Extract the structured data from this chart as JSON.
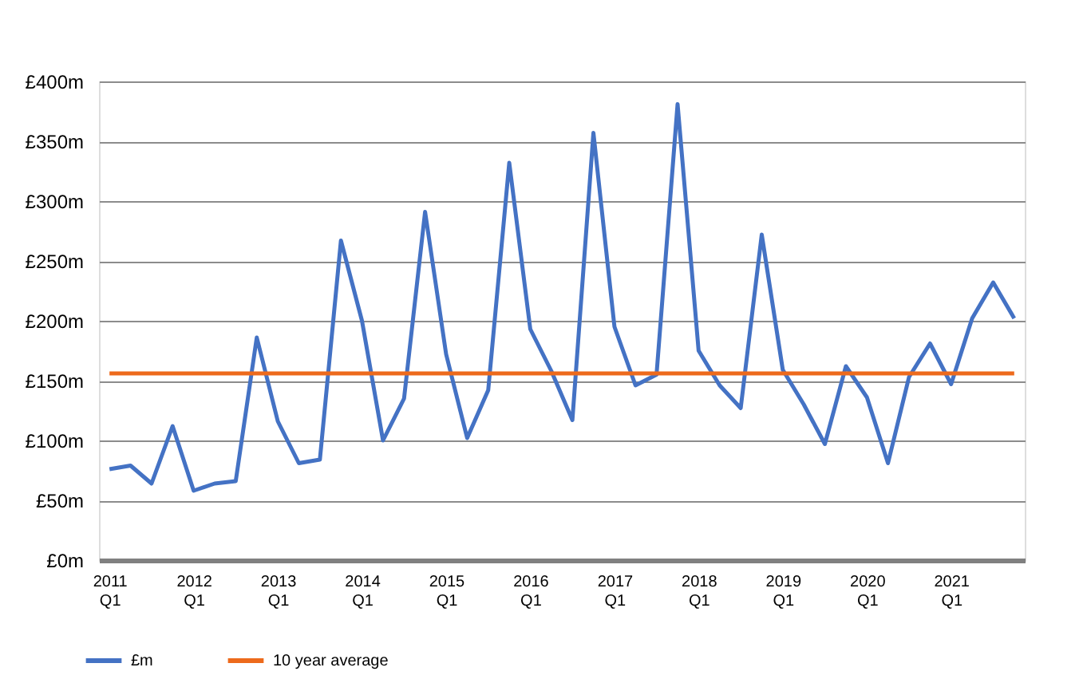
{
  "chart_data": {
    "type": "line",
    "categories": [
      "2011 Q1",
      null,
      null,
      null,
      "2012 Q1",
      null,
      null,
      null,
      "2013 Q1",
      null,
      null,
      null,
      "2014 Q1",
      null,
      null,
      null,
      "2015 Q1",
      null,
      null,
      null,
      "2016 Q1",
      null,
      null,
      null,
      "2017 Q1",
      null,
      null,
      null,
      "2018 Q1",
      null,
      null,
      null,
      "2019 Q1",
      null,
      null,
      null,
      "2020 Q1",
      null,
      null,
      null,
      "2021 Q1",
      null,
      null,
      null
    ],
    "series": [
      {
        "name": "£m",
        "color": "#4472c4",
        "values": [
          76,
          79,
          64,
          112,
          58,
          64,
          66,
          186,
          116,
          81,
          84,
          267,
          200,
          100,
          135,
          291,
          172,
          102,
          142,
          332,
          193,
          158,
          117,
          357,
          195,
          146,
          155,
          381,
          175,
          146,
          127,
          272,
          159,
          130,
          97,
          162,
          136,
          81,
          153,
          181,
          147,
          202,
          232,
          202
        ]
      }
    ],
    "ref_lines": [
      {
        "axis": "y",
        "value": 156,
        "label": "10 year average",
        "color": "#ed6a1c"
      }
    ],
    "ylim": [
      0,
      400
    ],
    "yticks": [
      {
        "value": 0,
        "label": "£0m"
      },
      {
        "value": 50,
        "label": "£50m"
      },
      {
        "value": 100,
        "label": "£100m"
      },
      {
        "value": 150,
        "label": "£150m"
      },
      {
        "value": 200,
        "label": "£200m"
      },
      {
        "value": 250,
        "label": "£250m"
      },
      {
        "value": 300,
        "label": "£300m"
      },
      {
        "value": 350,
        "label": "£350m"
      },
      {
        "value": 400,
        "label": "£400m"
      }
    ],
    "grid": "y",
    "legend": "bottom left",
    "marker": "none",
    "line_style": "solid"
  }
}
